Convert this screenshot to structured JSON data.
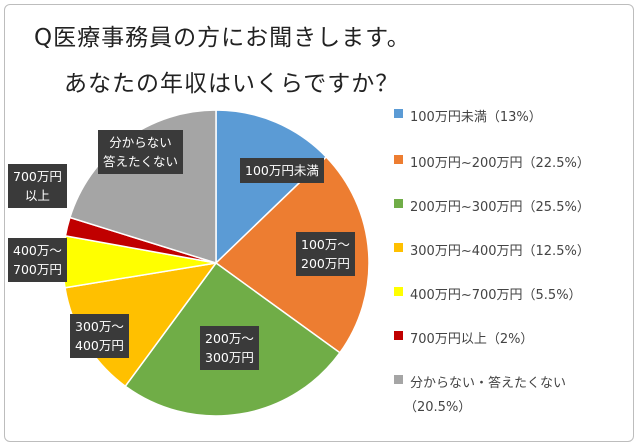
{
  "chart_data": {
    "type": "pie",
    "title_line1": "Q医療事務員の方にお聞きします。",
    "title_line2": "あなたの年収はいくらですか？",
    "slices": [
      {
        "name": "100万円未満",
        "value": 13,
        "color": "#5b9bd5",
        "legend": "100万円未満（13%）",
        "label_lines": [
          "100万円未満"
        ]
      },
      {
        "name": "100万円~200万円",
        "value": 22.5,
        "color": "#ed7d31",
        "legend": "100万円~200万円（22.5%）",
        "label_lines": [
          "100万～",
          "200万円"
        ]
      },
      {
        "name": "200万円~300万円",
        "value": 25.5,
        "color": "#70ad47",
        "legend": "200万円~300万円（25.5%）",
        "label_lines": [
          "200万～",
          "300万円"
        ]
      },
      {
        "name": "300万円~400万円",
        "value": 12.5,
        "color": "#ffc000",
        "legend": "300万円~400万円（12.5%）",
        "label_lines": [
          "300万～",
          "400万円"
        ]
      },
      {
        "name": "400万円~700万円",
        "value": 5.5,
        "color": "#ffff00",
        "legend": "400万円~700万円（5.5%）",
        "label_lines": [
          "400万～",
          "700万円"
        ]
      },
      {
        "name": "700万円以上",
        "value": 2,
        "color": "#c00000",
        "legend": "700万円以上（2%）",
        "label_lines": [
          "700万円",
          "以上"
        ]
      },
      {
        "name": "分からない・答えたくない",
        "value": 20.5,
        "color": "#a5a5a5",
        "legend": "分からない・答えたくない",
        "legend_line2": "（20.5%）",
        "label_lines": [
          "分からない",
          "答えたくない"
        ]
      }
    ],
    "legend_position": "right"
  }
}
